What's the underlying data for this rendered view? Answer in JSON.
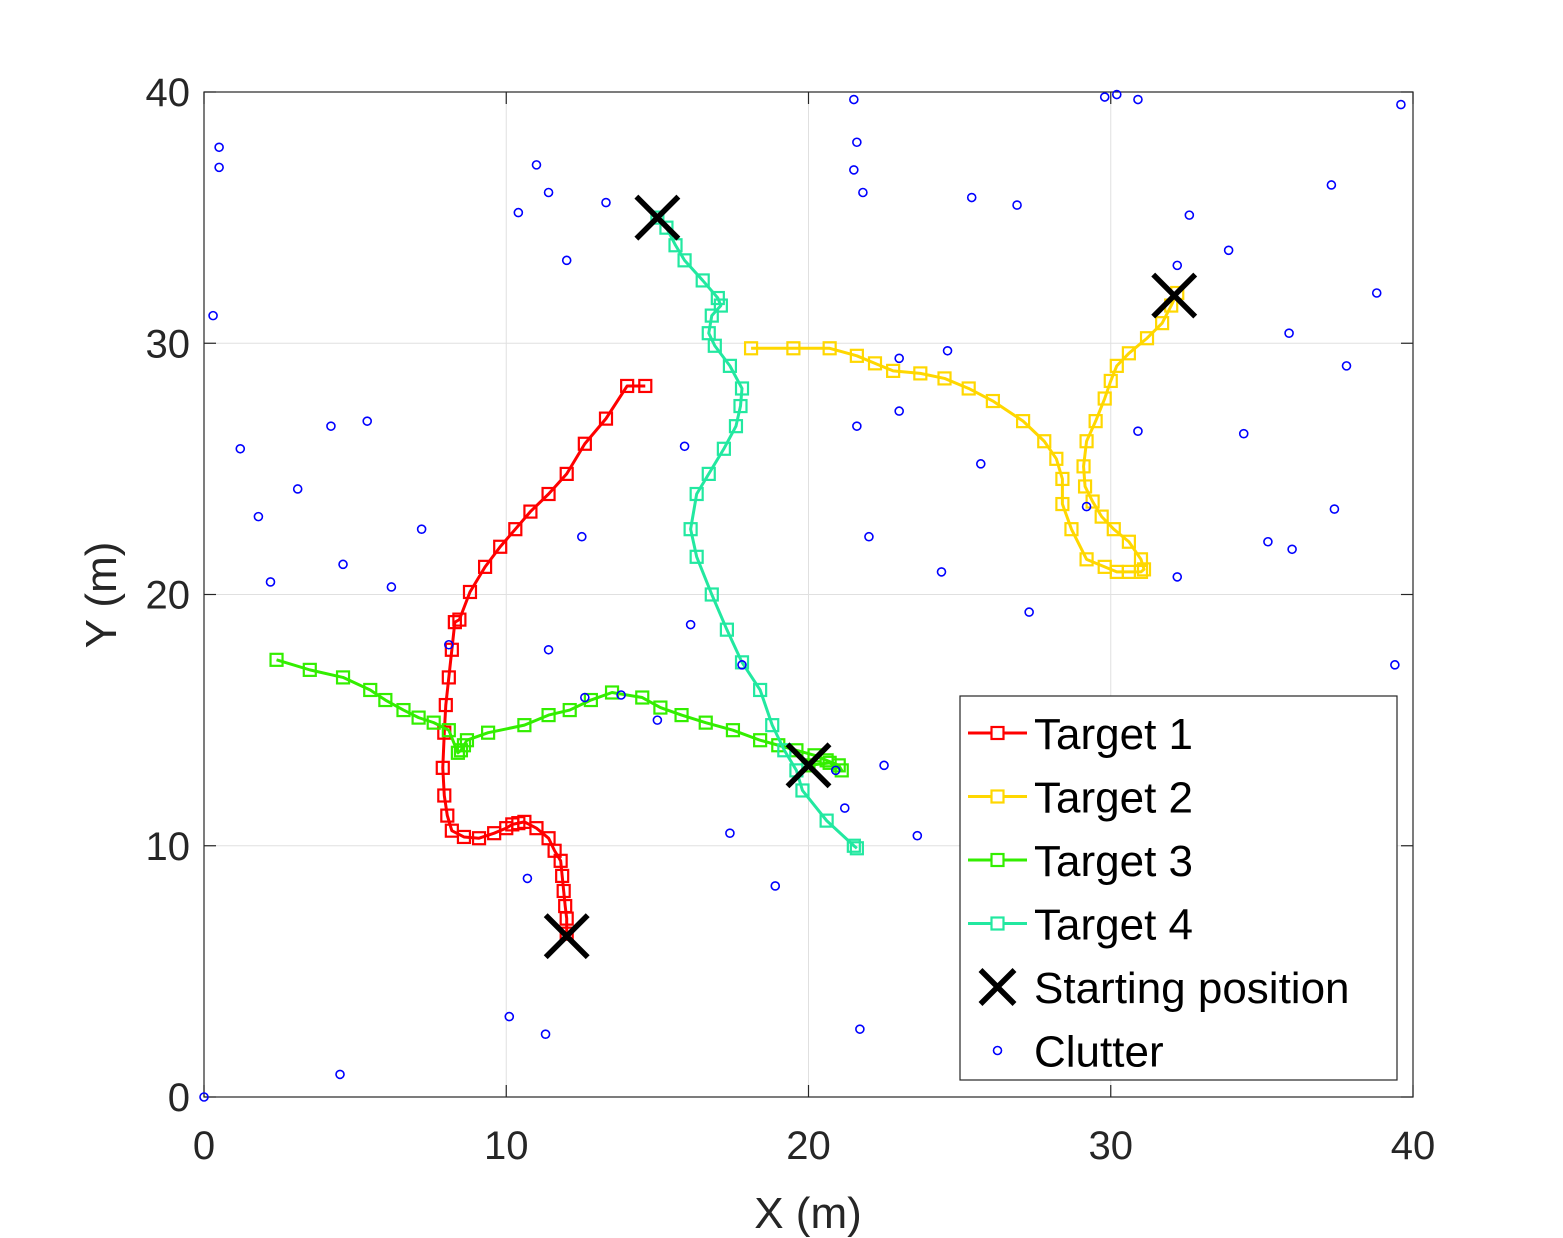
{
  "chart_data": {
    "type": "line",
    "xlabel": "X (m)",
    "ylabel": "Y (m)",
    "xlim": [
      0,
      40
    ],
    "ylim": [
      0,
      40
    ],
    "xticks": [
      "0",
      "10",
      "20",
      "30",
      "40"
    ],
    "yticks": [
      "0",
      "10",
      "20",
      "30",
      "40"
    ],
    "grid": true,
    "legend_position": "bottom-right",
    "series": [
      {
        "name": "Target 1",
        "color": "#ff0000",
        "marker": "square",
        "x": [
          12.0,
          12.0,
          11.95,
          11.9,
          11.85,
          11.8,
          11.6,
          11.4,
          11.0,
          10.6,
          10.4,
          10.2,
          10.0,
          9.6,
          9.1,
          8.6,
          8.2,
          8.05,
          7.95,
          7.9,
          7.95,
          8.0,
          8.1,
          8.2,
          8.3,
          8.45,
          8.8,
          9.3,
          9.8,
          10.3,
          10.8,
          11.4,
          12.0,
          12.6,
          13.3,
          14.0,
          14.6
        ],
        "y": [
          6.5,
          7.1,
          7.6,
          8.2,
          8.8,
          9.4,
          9.8,
          10.3,
          10.7,
          10.95,
          10.9,
          10.85,
          10.7,
          10.5,
          10.3,
          10.35,
          10.6,
          11.2,
          12.0,
          13.1,
          14.5,
          15.6,
          16.7,
          17.8,
          18.9,
          19.0,
          20.1,
          21.1,
          21.9,
          22.6,
          23.3,
          24.0,
          24.8,
          26.0,
          27.0,
          28.3,
          28.3
        ]
      },
      {
        "name": "Target 2",
        "color": "#ffd700",
        "marker": "square",
        "x": [
          32.2,
          32.0,
          31.7,
          31.2,
          30.6,
          30.2,
          30.0,
          29.8,
          29.5,
          29.2,
          29.1,
          29.15,
          29.4,
          29.7,
          30.1,
          30.6,
          31.0,
          31.1,
          31.0,
          30.6,
          30.2,
          29.8,
          29.2,
          28.7,
          28.4,
          28.4,
          28.2,
          27.8,
          27.1,
          26.1,
          25.3,
          24.5,
          23.7,
          22.8,
          22.2,
          21.6,
          20.7,
          19.5,
          18.1
        ],
        "y": [
          32.0,
          31.5,
          30.8,
          30.2,
          29.6,
          29.1,
          28.5,
          27.8,
          26.9,
          26.1,
          25.1,
          24.3,
          23.7,
          23.1,
          22.6,
          22.1,
          21.4,
          21.0,
          20.9,
          20.9,
          20.9,
          21.1,
          21.4,
          22.6,
          23.6,
          24.6,
          25.4,
          26.1,
          26.9,
          27.7,
          28.2,
          28.6,
          28.8,
          28.9,
          29.2,
          29.5,
          29.8,
          29.8,
          29.8
        ]
      },
      {
        "name": "Target 3",
        "color": "#33ee00",
        "marker": "square",
        "x": [
          20.0,
          20.7,
          21.1,
          21.0,
          20.6,
          20.2,
          19.6,
          19.0,
          18.4,
          17.5,
          16.6,
          15.8,
          15.1,
          14.5,
          13.5,
          12.8,
          12.1,
          11.4,
          10.6,
          9.4,
          8.7,
          8.6,
          8.5,
          8.4,
          8.1,
          7.6,
          7.1,
          6.6,
          6.0,
          5.5,
          4.6,
          3.5,
          2.4
        ],
        "y": [
          13.2,
          13.3,
          13.0,
          13.2,
          13.4,
          13.6,
          13.8,
          14.0,
          14.2,
          14.6,
          14.9,
          15.2,
          15.5,
          15.9,
          16.1,
          15.8,
          15.4,
          15.2,
          14.8,
          14.5,
          14.2,
          14.0,
          13.8,
          13.7,
          14.6,
          14.9,
          15.1,
          15.4,
          15.8,
          16.2,
          16.7,
          17.0,
          17.4
        ]
      },
      {
        "name": "Target 4",
        "color": "#22e8a0",
        "marker": "square",
        "x": [
          15.0,
          15.3,
          15.6,
          15.9,
          16.5,
          17.0,
          17.1,
          16.8,
          16.7,
          16.9,
          17.4,
          17.8,
          17.75,
          17.6,
          17.2,
          16.7,
          16.3,
          16.1,
          16.3,
          16.8,
          17.3,
          17.8,
          18.4,
          18.8,
          19.2,
          19.6,
          19.8,
          20.6,
          21.5,
          21.6
        ],
        "y": [
          35.0,
          34.6,
          33.9,
          33.3,
          32.5,
          31.8,
          31.5,
          31.1,
          30.4,
          29.9,
          29.1,
          28.2,
          27.5,
          26.7,
          25.8,
          24.8,
          24.0,
          22.6,
          21.5,
          20.0,
          18.6,
          17.3,
          16.2,
          14.8,
          13.8,
          13.0,
          12.2,
          11.0,
          10.0,
          9.9
        ]
      }
    ],
    "starting_positions": {
      "name": "Starting position",
      "marker": "x",
      "color": "#000000",
      "x": [
        12.0,
        32.1,
        20.0,
        15.0
      ],
      "y": [
        6.4,
        31.9,
        13.2,
        35.0
      ]
    },
    "clutter": {
      "name": "Clutter",
      "marker": "circle",
      "color": "#0000ff",
      "x": [
        0.0,
        0.3,
        0.5,
        0.5,
        1.2,
        1.8,
        2.2,
        3.1,
        4.2,
        4.5,
        4.6,
        5.4,
        6.2,
        7.2,
        8.1,
        10.1,
        10.4,
        10.7,
        11.0,
        11.3,
        11.4,
        11.4,
        12.0,
        12.5,
        12.6,
        13.3,
        13.8,
        15.0,
        15.9,
        16.1,
        17.4,
        17.8,
        18.9,
        20.9,
        21.2,
        21.5,
        21.5,
        21.6,
        21.6,
        21.7,
        21.8,
        22.0,
        22.5,
        23.0,
        23.0,
        23.6,
        24.4,
        24.6,
        25.4,
        25.7,
        26.9,
        27.3,
        29.2,
        29.8,
        30.2,
        30.9,
        30.9,
        32.2,
        32.2,
        32.6,
        33.9,
        34.4,
        35.2,
        35.9,
        36.0,
        37.3,
        37.4,
        37.8,
        38.8,
        39.4,
        39.6
      ],
      "y": [
        0.0,
        31.1,
        37.8,
        37.0,
        25.8,
        23.1,
        20.5,
        24.2,
        26.7,
        0.9,
        21.2,
        26.9,
        20.3,
        22.6,
        18.0,
        3.2,
        35.2,
        8.7,
        37.1,
        2.5,
        36.0,
        17.8,
        33.3,
        22.3,
        15.9,
        35.6,
        16.0,
        15.0,
        25.9,
        18.8,
        10.5,
        17.2,
        8.4,
        13.0,
        11.5,
        36.9,
        39.7,
        26.7,
        38.0,
        2.7,
        36.0,
        22.3,
        13.2,
        29.4,
        27.3,
        10.4,
        20.9,
        29.7,
        35.8,
        25.2,
        35.5,
        19.3,
        23.5,
        39.8,
        39.9,
        26.5,
        39.7,
        33.1,
        20.7,
        35.1,
        33.7,
        26.4,
        22.1,
        30.4,
        21.8,
        36.3,
        23.4,
        29.1,
        32.0,
        17.2,
        39.5
      ]
    }
  }
}
